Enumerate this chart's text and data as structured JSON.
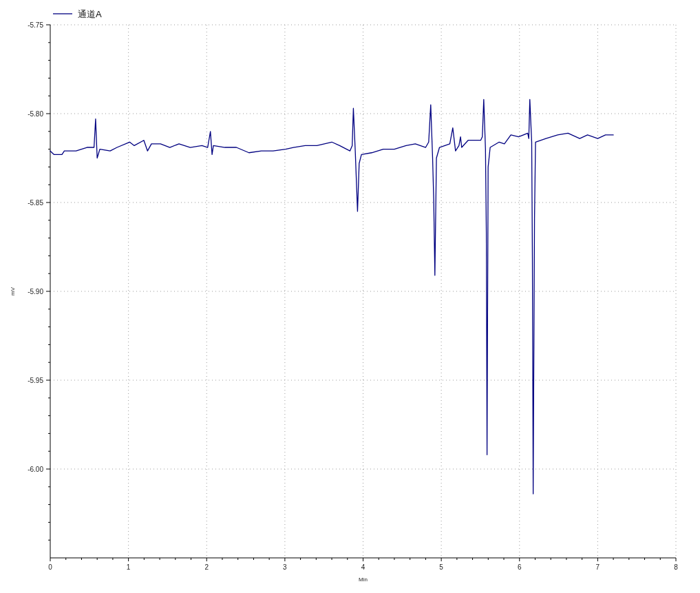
{
  "chart_data": {
    "type": "line",
    "xlabel": "Min",
    "ylabel": "mV",
    "xlim": [
      0,
      8
    ],
    "ylim": [
      -6.05,
      -5.75
    ],
    "xticks": [
      0,
      {
        "value": 0.2,
        "label": null
      },
      {
        "value": 0.4,
        "label": null
      },
      {
        "value": 0.6,
        "label": null
      },
      {
        "value": 0.8,
        "label": null
      },
      1,
      {
        "value": 1.2,
        "label": null
      },
      {
        "value": 1.4,
        "label": null
      },
      {
        "value": 1.6,
        "label": null
      },
      {
        "value": 1.8,
        "label": null
      },
      2,
      {
        "value": 2.2,
        "label": null
      },
      {
        "value": 2.4,
        "label": null
      },
      {
        "value": 2.6,
        "label": null
      },
      {
        "value": 2.8,
        "label": null
      },
      3,
      {
        "value": 3.2,
        "label": null
      },
      {
        "value": 3.4,
        "label": null
      },
      {
        "value": 3.6,
        "label": null
      },
      {
        "value": 3.8,
        "label": null
      },
      4,
      {
        "value": 4.2,
        "label": null
      },
      {
        "value": 4.4,
        "label": null
      },
      {
        "value": 4.6,
        "label": null
      },
      {
        "value": 4.8,
        "label": null
      },
      5,
      {
        "value": 5.2,
        "label": null
      },
      {
        "value": 5.4,
        "label": null
      },
      {
        "value": 5.6,
        "label": null
      },
      {
        "value": 5.8,
        "label": null
      },
      6,
      {
        "value": 6.2,
        "label": null
      },
      {
        "value": 6.4,
        "label": null
      },
      {
        "value": 6.6,
        "label": null
      },
      {
        "value": 6.8,
        "label": null
      },
      7,
      {
        "value": 7.2,
        "label": null
      },
      {
        "value": 7.4,
        "label": null
      },
      {
        "value": 7.6,
        "label": null
      },
      {
        "value": 7.8,
        "label": null
      },
      8
    ],
    "yticks": [
      {
        "value": -6.04,
        "label": null
      },
      {
        "value": -6.03,
        "label": null
      },
      {
        "value": -6.02,
        "label": null
      },
      {
        "value": -6.01,
        "label": null
      },
      {
        "value": -6.0,
        "label": "-6.00"
      },
      {
        "value": -5.99,
        "label": null
      },
      {
        "value": -5.98,
        "label": null
      },
      {
        "value": -5.97,
        "label": null
      },
      {
        "value": -5.96,
        "label": null
      },
      -5.95,
      {
        "value": -5.94,
        "label": null
      },
      {
        "value": -5.93,
        "label": null
      },
      {
        "value": -5.92,
        "label": null
      },
      {
        "value": -5.91,
        "label": null
      },
      {
        "value": -5.9,
        "label": "-5.90"
      },
      {
        "value": -5.89,
        "label": null
      },
      {
        "value": -5.88,
        "label": null
      },
      {
        "value": -5.87,
        "label": null
      },
      {
        "value": -5.86,
        "label": null
      },
      -5.85,
      {
        "value": -5.84,
        "label": null
      },
      {
        "value": -5.83,
        "label": null
      },
      {
        "value": -5.82,
        "label": null
      },
      {
        "value": -5.81,
        "label": null
      },
      {
        "value": -5.8,
        "label": "-5.80"
      },
      {
        "value": -5.79,
        "label": null
      },
      {
        "value": -5.78,
        "label": null
      },
      {
        "value": -5.77,
        "label": null
      },
      {
        "value": -5.76,
        "label": null
      },
      -5.75
    ],
    "grid": true,
    "legend": "top left",
    "marker": "none",
    "line_style": "solid",
    "series": [
      {
        "name": "通道A",
        "color": "#000080",
        "x": [
          0.0,
          0.047,
          0.15,
          0.18,
          0.33,
          0.47,
          0.56,
          0.58,
          0.6,
          0.634,
          0.766,
          0.854,
          1.015,
          1.074,
          1.197,
          1.244,
          1.294,
          1.41,
          1.529,
          1.646,
          1.79,
          1.94,
          2.013,
          2.048,
          2.069,
          2.086,
          2.233,
          2.38,
          2.541,
          2.7,
          2.85,
          3.01,
          3.11,
          3.26,
          3.41,
          3.6,
          3.7,
          3.832,
          3.861,
          3.876,
          3.9,
          3.929,
          3.95,
          3.979,
          4.11,
          4.258,
          4.4,
          4.55,
          4.668,
          4.8,
          4.839,
          4.865,
          4.889,
          4.903,
          4.918,
          4.938,
          4.977,
          5.109,
          5.147,
          5.182,
          5.226,
          5.246,
          5.261,
          5.343,
          5.504,
          5.525,
          5.543,
          5.565,
          5.576,
          5.585,
          5.599,
          5.625,
          5.74,
          5.807,
          5.89,
          5.989,
          6.105,
          6.119,
          6.132,
          6.156,
          6.165,
          6.175,
          6.192,
          6.205,
          6.338,
          6.488,
          6.62,
          6.77,
          6.87,
          7.0,
          7.1,
          7.2
        ],
        "values": [
          -5.821,
          -5.823,
          -5.823,
          -5.821,
          -5.821,
          -5.819,
          -5.819,
          -5.803,
          -5.825,
          -5.82,
          -5.821,
          -5.819,
          -5.816,
          -5.818,
          -5.815,
          -5.821,
          -5.817,
          -5.817,
          -5.819,
          -5.817,
          -5.819,
          -5.818,
          -5.819,
          -5.81,
          -5.823,
          -5.818,
          -5.819,
          -5.819,
          -5.822,
          -5.821,
          -5.821,
          -5.82,
          -5.819,
          -5.818,
          -5.818,
          -5.816,
          -5.818,
          -5.821,
          -5.818,
          -5.797,
          -5.821,
          -5.855,
          -5.828,
          -5.823,
          -5.822,
          -5.82,
          -5.82,
          -5.818,
          -5.817,
          -5.819,
          -5.816,
          -5.795,
          -5.825,
          -5.848,
          -5.891,
          -5.825,
          -5.819,
          -5.817,
          -5.808,
          -5.821,
          -5.818,
          -5.813,
          -5.819,
          -5.815,
          -5.815,
          -5.813,
          -5.792,
          -5.82,
          -5.867,
          -5.992,
          -5.83,
          -5.819,
          -5.816,
          -5.817,
          -5.812,
          -5.813,
          -5.811,
          -5.814,
          -5.792,
          -5.816,
          -5.881,
          -6.014,
          -5.859,
          -5.816,
          -5.814,
          -5.812,
          -5.811,
          -5.814,
          -5.812,
          -5.814,
          -5.812,
          -5.812
        ]
      }
    ]
  }
}
